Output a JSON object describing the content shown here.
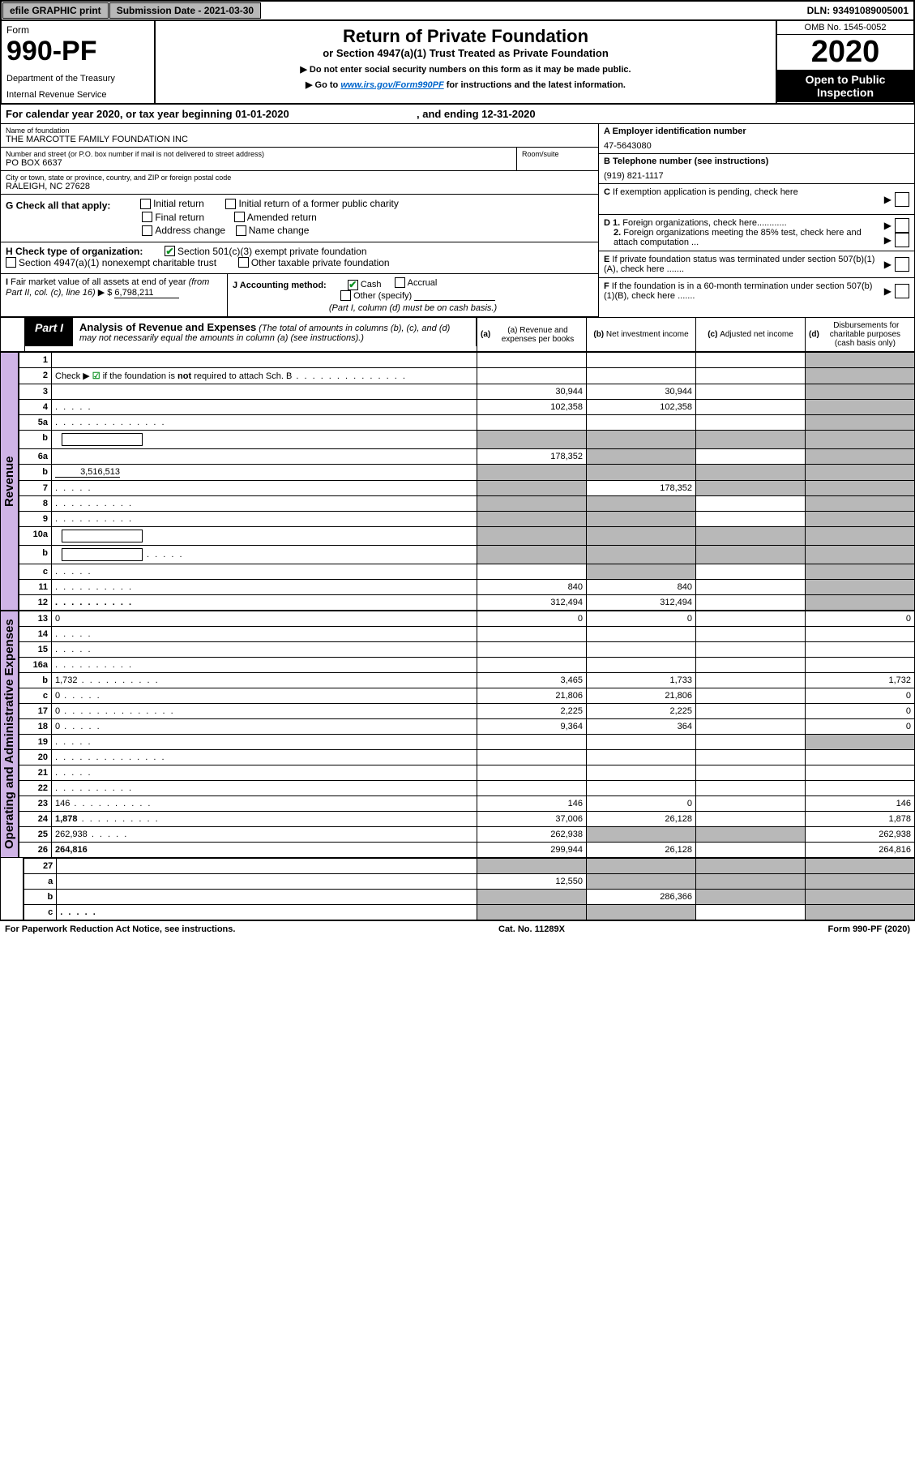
{
  "topbar": {
    "efile": "efile GRAPHIC print",
    "submission": "Submission Date - 2021-03-30",
    "dln": "DLN: 93491089005001"
  },
  "header": {
    "form_label": "Form",
    "form_number": "990-PF",
    "dept1": "Department of the Treasury",
    "dept2": "Internal Revenue Service",
    "title": "Return of Private Foundation",
    "subtitle": "or Section 4947(a)(1) Trust Treated as Private Foundation",
    "note1": "▶ Do not enter social security numbers on this form as it may be made public.",
    "note2_pre": "▶ Go to ",
    "note2_link": "www.irs.gov/Form990PF",
    "note2_post": " for instructions and the latest information.",
    "omb": "OMB No. 1545-0052",
    "year": "2020",
    "inspection": "Open to Public Inspection"
  },
  "cal_year": {
    "text": "For calendar year 2020, or tax year beginning 01-01-2020",
    "ending": ", and ending 12-31-2020"
  },
  "entity": {
    "name_label": "Name of foundation",
    "name": "THE MARCOTTE FAMILY FOUNDATION INC",
    "addr_label": "Number and street (or P.O. box number if mail is not delivered to street address)",
    "addr": "PO BOX 6637",
    "room_label": "Room/suite",
    "city_label": "City or town, state or province, country, and ZIP or foreign postal code",
    "city": "RALEIGH, NC  27628",
    "ein_label": "A Employer identification number",
    "ein": "47-5643080",
    "phone_label": "B Telephone number (see instructions)",
    "phone": "(919) 821-1117",
    "c_label": "C If exemption application is pending, check here"
  },
  "sections": {
    "g_label": "G Check all that apply:",
    "g_opts": [
      "Initial return",
      "Initial return of a former public charity",
      "Final return",
      "Amended return",
      "Address change",
      "Name change"
    ],
    "h_label": "H Check type of organization:",
    "h_opt1": "Section 501(c)(3) exempt private foundation",
    "h_opt2": "Section 4947(a)(1) nonexempt charitable trust",
    "h_opt3": "Other taxable private foundation",
    "i_label": "I Fair market value of all assets at end of year (from Part II, col. (c), line 16) ▶ $",
    "i_value": "6,798,211",
    "j_label": "J Accounting method:",
    "j_cash": "Cash",
    "j_accrual": "Accrual",
    "j_other": "Other (specify)",
    "j_note": "(Part I, column (d) must be on cash basis.)",
    "d1": "D 1. Foreign organizations, check here............",
    "d2": "2. Foreign organizations meeting the 85% test, check here and attach computation ...",
    "e": "E If private foundation status was terminated under section 507(b)(1)(A), check here .......",
    "f": "F  If the foundation is in a 60-month termination under section 507(b)(1)(B), check here .......",
    "check_marks": {
      "h_501c3": true,
      "j_cash": true,
      "schb_check": true
    }
  },
  "part1": {
    "label": "Part I",
    "title": "Analysis of Revenue and Expenses",
    "title_note": "(The total of amounts in columns (b), (c), and (d) may not necessarily equal the amounts in column (a) (see instructions).)",
    "cols": {
      "a": "(a) Revenue and expenses per books",
      "b": "(b) Net investment income",
      "c": "(c) Adjusted net income",
      "d": "(d) Disbursements for charitable purposes (cash basis only)"
    }
  },
  "side_labels": {
    "revenue": "Revenue",
    "opex": "Operating and Administrative Expenses"
  },
  "rows": [
    {
      "n": "1",
      "d": "",
      "a": "",
      "b": "",
      "c": "",
      "dShade": true
    },
    {
      "n": "2",
      "d": "",
      "dots": "l",
      "a": "",
      "b": "",
      "c": "",
      "dShade": true,
      "bold_not": true
    },
    {
      "n": "3",
      "d": "",
      "a": "30,944",
      "b": "30,944",
      "c": "",
      "dShade": true
    },
    {
      "n": "4",
      "d": "",
      "dots": "s",
      "a": "102,358",
      "b": "102,358",
      "c": "",
      "dShade": true
    },
    {
      "n": "5a",
      "d": "",
      "dots": "l",
      "a": "",
      "b": "",
      "c": "",
      "dShade": true
    },
    {
      "n": "b",
      "d": "",
      "inline": true,
      "a": "",
      "b": "",
      "c": "",
      "allShade": true
    },
    {
      "n": "6a",
      "d": "",
      "a": "178,352",
      "b": "",
      "bShade": true,
      "c": "",
      "dShade": true
    },
    {
      "n": "b",
      "d": "",
      "inline_val": "3,516,513",
      "a": "",
      "b": "",
      "c": "",
      "allShade": true
    },
    {
      "n": "7",
      "d": "",
      "dots": "s",
      "a": "",
      "aShade": true,
      "b": "178,352",
      "c": "",
      "cShade": true,
      "dShade": true
    },
    {
      "n": "8",
      "d": "",
      "dots": "m",
      "a": "",
      "aShade": true,
      "b": "",
      "bShade": true,
      "c": "",
      "dShade": true
    },
    {
      "n": "9",
      "d": "",
      "dots": "m",
      "a": "",
      "aShade": true,
      "b": "",
      "bShade": true,
      "c": "",
      "dShade": true
    },
    {
      "n": "10a",
      "d": "",
      "inline": true,
      "a": "",
      "b": "",
      "c": "",
      "allShade": true
    },
    {
      "n": "b",
      "d": "",
      "dots": "s",
      "inline": true,
      "a": "",
      "b": "",
      "c": "",
      "allShade": true
    },
    {
      "n": "c",
      "d": "",
      "dots": "s",
      "a": "",
      "b": "",
      "bShade": true,
      "c": "",
      "dShade": true
    },
    {
      "n": "11",
      "d": "",
      "dots": "m",
      "a": "840",
      "b": "840",
      "c": "",
      "dShade": true
    },
    {
      "n": "12",
      "d": "",
      "dots": "m",
      "a": "312,494",
      "b": "312,494",
      "c": "",
      "dShade": true,
      "bold": true
    }
  ],
  "rows2": [
    {
      "n": "13",
      "d": "0",
      "a": "0",
      "b": "0",
      "c": ""
    },
    {
      "n": "14",
      "d": "",
      "dots": "s",
      "a": "",
      "b": "",
      "c": ""
    },
    {
      "n": "15",
      "d": "",
      "dots": "s",
      "a": "",
      "b": "",
      "c": ""
    },
    {
      "n": "16a",
      "d": "",
      "dots": "m",
      "a": "",
      "b": "",
      "c": ""
    },
    {
      "n": "b",
      "d": "1,732",
      "dots": "m",
      "a": "3,465",
      "b": "1,733",
      "c": ""
    },
    {
      "n": "c",
      "d": "0",
      "dots": "s",
      "a": "21,806",
      "b": "21,806",
      "c": ""
    },
    {
      "n": "17",
      "d": "0",
      "dots": "l",
      "a": "2,225",
      "b": "2,225",
      "c": ""
    },
    {
      "n": "18",
      "d": "0",
      "dots": "s",
      "a": "9,364",
      "b": "364",
      "c": ""
    },
    {
      "n": "19",
      "d": "",
      "dots": "s",
      "a": "",
      "b": "",
      "c": "",
      "dShade": true
    },
    {
      "n": "20",
      "d": "",
      "dots": "l",
      "a": "",
      "b": "",
      "c": ""
    },
    {
      "n": "21",
      "d": "",
      "dots": "s",
      "a": "",
      "b": "",
      "c": ""
    },
    {
      "n": "22",
      "d": "",
      "dots": "m",
      "a": "",
      "b": "",
      "c": ""
    },
    {
      "n": "23",
      "d": "146",
      "dots": "m",
      "a": "146",
      "b": "0",
      "c": ""
    },
    {
      "n": "24",
      "d": "1,878",
      "dots": "m",
      "a": "37,006",
      "b": "26,128",
      "c": "",
      "bold_first": true
    },
    {
      "n": "25",
      "d": "262,938",
      "dots": "s",
      "a": "262,938",
      "b": "",
      "bShade": true,
      "c": "",
      "cShade": true
    },
    {
      "n": "26",
      "d": "264,816",
      "a": "299,944",
      "b": "26,128",
      "c": "",
      "bold": true
    }
  ],
  "rows3": [
    {
      "n": "27",
      "d": "",
      "a": "",
      "aShade": true,
      "b": "",
      "bShade": true,
      "c": "",
      "cShade": true,
      "dShade": true
    },
    {
      "n": "a",
      "d": "",
      "a": "12,550",
      "b": "",
      "bShade": true,
      "c": "",
      "cShade": true,
      "dShade": true,
      "bold": true
    },
    {
      "n": "b",
      "d": "",
      "a": "",
      "aShade": true,
      "b": "286,366",
      "c": "",
      "cShade": true,
      "dShade": true,
      "bold": true
    },
    {
      "n": "c",
      "d": "",
      "dots": "s",
      "a": "",
      "aShade": true,
      "b": "",
      "bShade": true,
      "c": "",
      "dShade": true,
      "bold": true
    }
  ],
  "footer": {
    "left": "For Paperwork Reduction Act Notice, see instructions.",
    "mid": "Cat. No. 11289X",
    "right": "Form 990-PF (2020)"
  },
  "colors": {
    "side_bg": "#cfb4e6",
    "shade": "#b8b8b8",
    "link": "#0066cc",
    "check": "#0a9020"
  }
}
